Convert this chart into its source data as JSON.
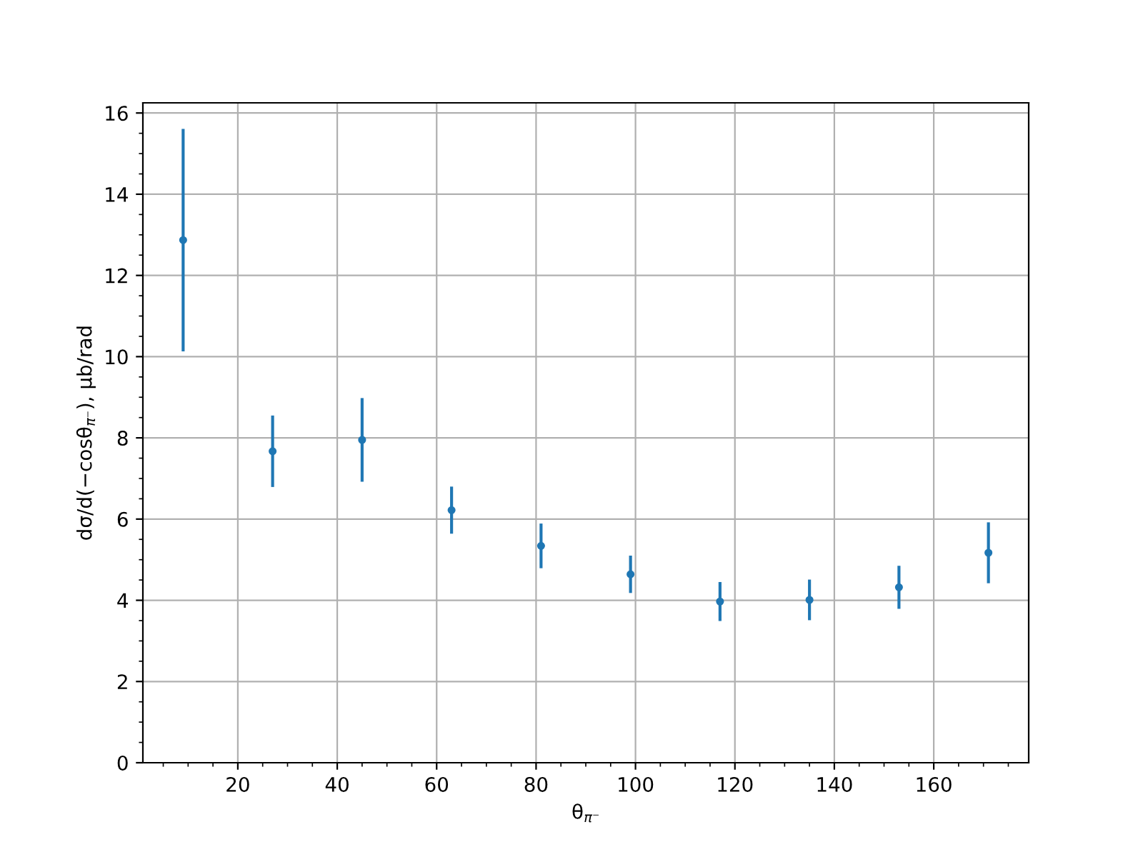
{
  "chart_data": {
    "type": "scatter",
    "xlabel": "θ$_{π⁻}$",
    "ylabel": "dσ/d(−cosθ$_{π⁻}$), μb/rad",
    "x": [
      9,
      27,
      45,
      63,
      81,
      99,
      117,
      135,
      153,
      171
    ],
    "values": [
      12.87,
      7.67,
      7.95,
      6.22,
      5.34,
      4.64,
      3.97,
      4.01,
      4.32,
      5.17
    ],
    "errors": [
      2.74,
      0.88,
      1.03,
      0.58,
      0.55,
      0.46,
      0.48,
      0.5,
      0.53,
      0.75
    ],
    "color": "#1f77b4",
    "marker": "circle",
    "xlim": [
      0.9,
      179.1
    ],
    "xticks": [
      20,
      40,
      60,
      80,
      100,
      120,
      140,
      160
    ],
    "ylim": [
      0,
      16.25
    ],
    "yticks": [
      0,
      2,
      4,
      6,
      8,
      10,
      12,
      14,
      16
    ],
    "grid": true
  }
}
